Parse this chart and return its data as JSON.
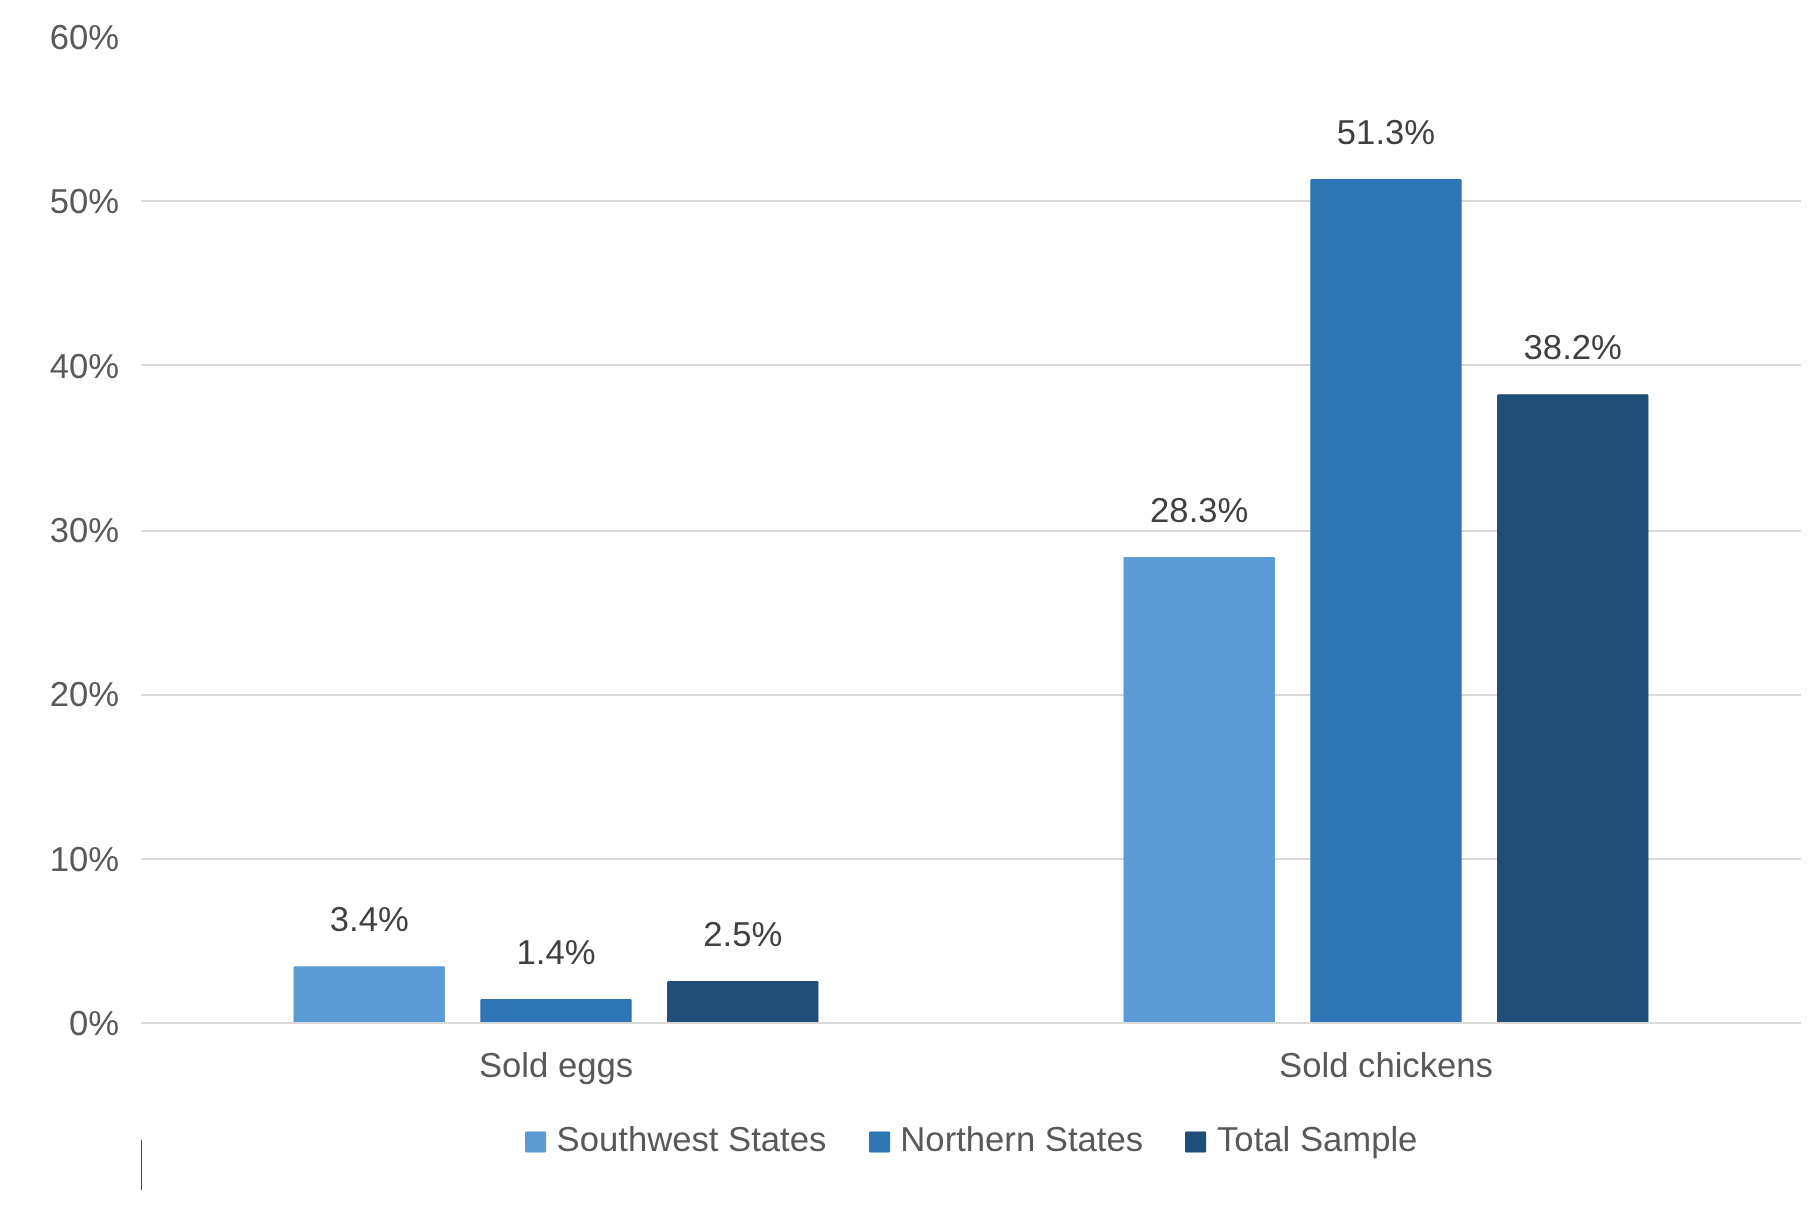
{
  "chart_data": {
    "type": "bar",
    "categories": [
      "Sold eggs",
      "Sold chickens"
    ],
    "series": [
      {
        "name": "Southwest States",
        "color": "#5b9bd5",
        "values": [
          3.4,
          28.3
        ],
        "value_labels": [
          "3.4%",
          "28.3%"
        ]
      },
      {
        "name": "Northern States",
        "color": "#2e75b6",
        "values": [
          1.4,
          51.3
        ],
        "value_labels": [
          "1.4%",
          "51.3%"
        ]
      },
      {
        "name": "Total Sample",
        "color": "#1f4e79",
        "values": [
          2.5,
          38.2
        ],
        "value_labels": [
          "2.5%",
          "38.2%"
        ]
      }
    ],
    "ylim": [
      0,
      60
    ],
    "yticks": [
      {
        "value": 0,
        "label": "0%"
      },
      {
        "value": 10,
        "label": "10%"
      },
      {
        "value": 20,
        "label": "20%"
      },
      {
        "value": 30,
        "label": "30%"
      },
      {
        "value": 40,
        "label": "40%"
      },
      {
        "value": 50,
        "label": "50%"
      },
      {
        "value": 60,
        "label": "60%"
      }
    ],
    "grid": "y",
    "legend": "bottom"
  }
}
